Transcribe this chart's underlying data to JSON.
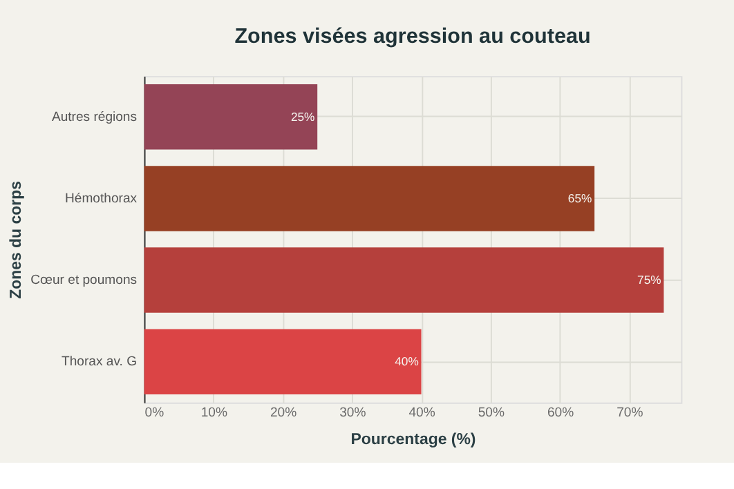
{
  "chart_data": {
    "type": "bar",
    "orientation": "horizontal",
    "title": "Zones visées agression au couteau",
    "xlabel": "Pourcentage (%)",
    "ylabel": "Zones du corps",
    "categories": [
      "Autres régions",
      "Hémothorax",
      "Cœur et poumons",
      "Thorax av. G"
    ],
    "values": [
      25,
      65,
      75,
      40
    ],
    "colors": [
      "#944456",
      "#964024",
      "#b5403c",
      "#db4445"
    ],
    "value_labels": [
      "25%",
      "65%",
      "75%",
      "40%"
    ],
    "xlim": [
      0,
      77.5
    ],
    "xticks": [
      {
        "value": 0,
        "label": "0%"
      },
      {
        "value": 10,
        "label": "10%"
      },
      {
        "value": 20,
        "label": "20%"
      },
      {
        "value": 30,
        "label": "30%"
      },
      {
        "value": 40,
        "label": "40%"
      },
      {
        "value": 50,
        "label": "50%"
      },
      {
        "value": 60,
        "label": "60%"
      },
      {
        "value": 70,
        "label": "70%"
      }
    ],
    "grid": true,
    "legend": false
  }
}
